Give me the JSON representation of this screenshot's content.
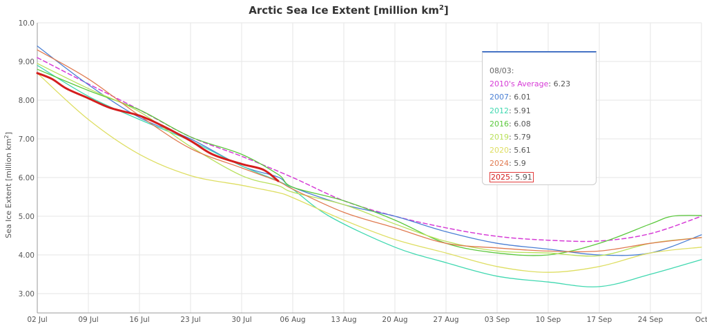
{
  "chart_data": {
    "type": "line",
    "title": "Arctic Sea Ice Extent [million km",
    "title_sup": "2",
    "title_end": "]",
    "ylabel": "Sea Ice Extent [million km",
    "ylabel_sup": "2",
    "ylabel_end": "]",
    "ylim": [
      2.5,
      10.0
    ],
    "yticks": [
      "3.00",
      "4.00",
      "5.00",
      "6.00",
      "7.00",
      "8.00",
      "9.00",
      "10.0"
    ],
    "xlim": [
      0,
      91
    ],
    "xticks": [
      {
        "day": 0,
        "label": "02 Jul"
      },
      {
        "day": 7,
        "label": "09 Jul"
      },
      {
        "day": 14,
        "label": "16 Jul"
      },
      {
        "day": 21,
        "label": "23 Jul"
      },
      {
        "day": 28,
        "label": "30 Jul"
      },
      {
        "day": 35,
        "label": "06 Aug"
      },
      {
        "day": 42,
        "label": "13 Aug"
      },
      {
        "day": 49,
        "label": "20 Aug"
      },
      {
        "day": 56,
        "label": "27 Aug"
      },
      {
        "day": 63,
        "label": "03 Sep"
      },
      {
        "day": 70,
        "label": "10 Sep"
      },
      {
        "day": 77,
        "label": "17 Sep"
      },
      {
        "day": 84,
        "label": "24 Sep"
      },
      {
        "day": 91,
        "label": "Oct"
      }
    ],
    "x_unit": "days since 02 Jul",
    "series": [
      {
        "name": "2010's Average",
        "color": "#d63ad6",
        "dashed": true,
        "width": 1.5,
        "x": [
          0,
          7,
          14,
          21,
          28,
          35,
          42,
          49,
          56,
          63,
          70,
          77,
          84,
          91
        ],
        "y": [
          9.1,
          8.42,
          7.75,
          7.05,
          6.55,
          6.0,
          5.4,
          5.0,
          4.7,
          4.48,
          4.38,
          4.36,
          4.55,
          5.0
        ]
      },
      {
        "name": "2007",
        "color": "#4a7fd4",
        "width": 1.3,
        "x": [
          0,
          7,
          14,
          21,
          28,
          33,
          35,
          42,
          49,
          56,
          63,
          70,
          77,
          84,
          91
        ],
        "y": [
          9.4,
          8.4,
          7.55,
          7.0,
          6.3,
          6.01,
          5.75,
          5.3,
          5.0,
          4.6,
          4.3,
          4.15,
          4.0,
          4.05,
          4.52
        ]
      },
      {
        "name": "2012",
        "color": "#40d8b0",
        "width": 1.3,
        "x": [
          0,
          7,
          14,
          21,
          28,
          33,
          35,
          40,
          49,
          56,
          63,
          70,
          77,
          84,
          91
        ],
        "y": [
          8.9,
          8.1,
          7.5,
          6.95,
          6.3,
          5.91,
          5.7,
          5.0,
          4.2,
          3.8,
          3.45,
          3.3,
          3.18,
          3.5,
          3.88
        ]
      },
      {
        "name": "2016",
        "color": "#5ac83c",
        "width": 1.3,
        "x": [
          0,
          7,
          14,
          21,
          28,
          33,
          35,
          42,
          49,
          56,
          63,
          70,
          77,
          84,
          87,
          91
        ],
        "y": [
          8.8,
          8.25,
          7.75,
          7.05,
          6.6,
          6.08,
          5.75,
          5.4,
          4.9,
          4.3,
          4.05,
          4.0,
          4.3,
          4.8,
          5.0,
          5.02
        ]
      },
      {
        "name": "2019",
        "color": "#b8e05a",
        "width": 1.3,
        "x": [
          0,
          7,
          14,
          21,
          28,
          33,
          35,
          42,
          49,
          56,
          63,
          70,
          77,
          84,
          91
        ],
        "y": [
          8.95,
          8.3,
          7.7,
          6.8,
          6.05,
          5.79,
          5.62,
          5.3,
          4.8,
          4.35,
          4.1,
          4.05,
          3.98,
          4.3,
          4.45
        ]
      },
      {
        "name": "2020",
        "color": "#dede62",
        "width": 1.3,
        "x": [
          0,
          7,
          14,
          21,
          28,
          33,
          35,
          42,
          49,
          56,
          63,
          70,
          77,
          84,
          91
        ],
        "y": [
          8.7,
          7.5,
          6.6,
          6.05,
          5.8,
          5.61,
          5.48,
          4.9,
          4.4,
          4.05,
          3.7,
          3.55,
          3.7,
          4.05,
          4.2
        ]
      },
      {
        "name": "2024",
        "color": "#e07a50",
        "width": 1.3,
        "x": [
          0,
          7,
          14,
          21,
          28,
          33,
          35,
          42,
          49,
          56,
          63,
          70,
          77,
          84,
          91
        ],
        "y": [
          9.3,
          8.55,
          7.6,
          6.75,
          6.25,
          5.9,
          5.7,
          5.1,
          4.7,
          4.3,
          4.18,
          4.1,
          4.1,
          4.3,
          4.45
        ]
      },
      {
        "name": "2025",
        "color": "#d41e1e",
        "width": 3,
        "x": [
          0,
          2,
          4,
          7,
          10,
          14,
          17,
          21,
          24,
          28,
          31,
          33
        ],
        "y": [
          8.7,
          8.55,
          8.3,
          8.05,
          7.8,
          7.6,
          7.35,
          6.95,
          6.6,
          6.35,
          6.2,
          5.91
        ]
      }
    ],
    "tooltip": {
      "date": "08/03:",
      "rows": [
        {
          "name": "2010's Average",
          "value": ": 6.23",
          "color": "#d63ad6"
        },
        {
          "name": "2007",
          "value": ": 6.01",
          "color": "#4a7fd4"
        },
        {
          "name": "2012",
          "value": ": 5.91",
          "color": "#40d8b0"
        },
        {
          "name": "2016",
          "value": ": 6.08",
          "color": "#5ac83c"
        },
        {
          "name": "2019",
          "value": ": 5.79",
          "color": "#b8e05a"
        },
        {
          "name": "2020",
          "value": ": 5.61",
          "color": "#dede62"
        },
        {
          "name": "2024",
          "value": ": 5.9",
          "color": "#e07a50"
        },
        {
          "name": "2025",
          "value": ": 5.91",
          "color": "#d41e1e",
          "boxed": true
        }
      ]
    }
  }
}
